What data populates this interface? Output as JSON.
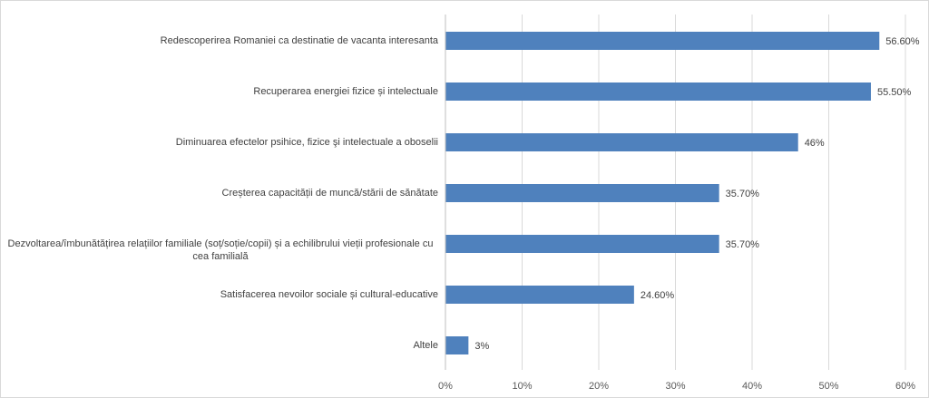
{
  "chart_data": {
    "type": "bar",
    "orientation": "horizontal",
    "title": "",
    "xlabel": "",
    "ylabel": "",
    "categories": [
      "Redescoperirea Romaniei ca destinatie de vacanta interesanta",
      "Recuperarea energiei fizice și intelectuale",
      "Diminuarea efectelor psihice, fizice şi intelectuale a oboselii",
      "Creșterea capacității de muncă/stării de sănătate",
      "Dezvoltarea/îmbunătățirea relațiilor familiale (soț/soție/copii) și a echilibrului vieții profesionale cu cea familială",
      "Satisfacerea nevoilor sociale și cultural-educative",
      "Altele"
    ],
    "values": [
      56.6,
      55.5,
      46,
      35.7,
      35.7,
      24.6,
      3
    ],
    "data_labels": [
      "56.60%",
      "55.50%",
      "46%",
      "35.70%",
      "35.70%",
      "24.60%",
      "3%"
    ],
    "xlim": [
      0,
      60
    ],
    "xticks": [
      "0%",
      "10%",
      "20%",
      "30%",
      "40%",
      "50%",
      "60%"
    ],
    "grid": true,
    "legend": "none",
    "bar_color": "#4F81BD"
  }
}
